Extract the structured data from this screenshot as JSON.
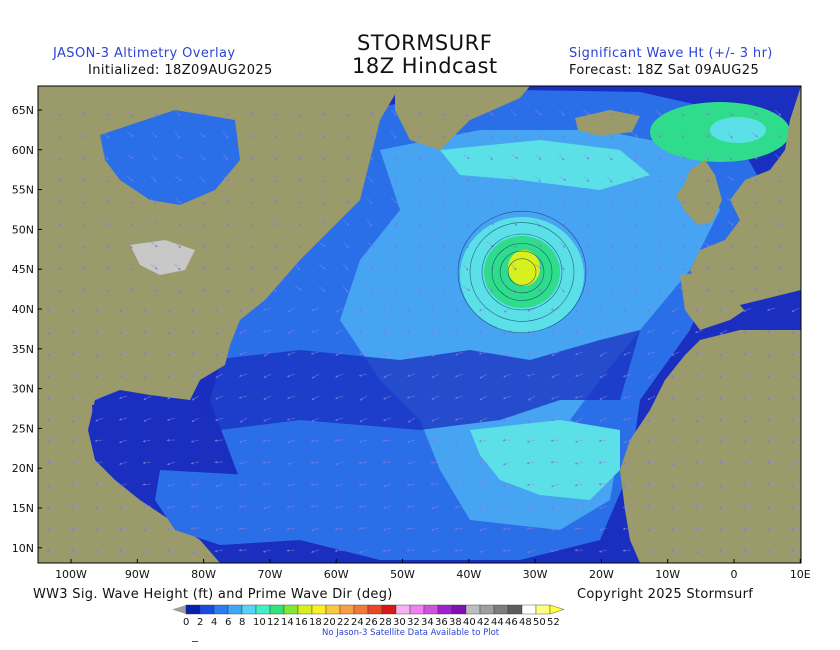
{
  "header": {
    "left_title": "JASON-3 Altimetry Overlay",
    "left_sub": "Initialized: 18Z09AUG2025",
    "center_title": "STORMSURF",
    "center_sub": "18Z Hindcast",
    "right_title": "Significant Wave Ht (+/- 3 hr)",
    "right_sub": "Forecast: 18Z Sat 09AUG25"
  },
  "axes": {
    "lat_labels": [
      "65N",
      "60N",
      "55N",
      "50N",
      "45N",
      "40N",
      "35N",
      "30N",
      "25N",
      "20N",
      "15N",
      "10N"
    ],
    "lon_labels": [
      "100W",
      "90W",
      "80W",
      "70W",
      "60W",
      "50W",
      "40W",
      "30W",
      "20W",
      "10W",
      "0",
      "10E"
    ]
  },
  "footer": {
    "left": "WW3 Sig. Wave Height (ft) and Prime Wave Dir (deg)",
    "right": "Copyright 2025 Stormsurf",
    "nodata": "No Jason-3 Satellite Data Available to Plot"
  },
  "legend": {
    "values": [
      "0",
      "2",
      "4",
      "6",
      "8",
      "10",
      "12",
      "14",
      "16",
      "18",
      "20",
      "22",
      "24",
      "26",
      "28",
      "30",
      "32",
      "34",
      "36",
      "38",
      "40",
      "42",
      "44",
      "46",
      "48",
      "50",
      "52"
    ],
    "colors": [
      "#0a1fb0",
      "#1a4be0",
      "#2a7cf0",
      "#3fa8f5",
      "#56d4f5",
      "#3ff0c8",
      "#33e27a",
      "#80e830",
      "#d8f020",
      "#f8f020",
      "#f8c840",
      "#f8a040",
      "#f07838",
      "#e84828",
      "#d81818",
      "#f7b0f0",
      "#f080f0",
      "#d050e0",
      "#a020d0",
      "#8010b0",
      "#bdbdbd",
      "#9e9e9e",
      "#7d7d7d",
      "#5d5d5d",
      "#ffffff",
      "#ffff80"
    ]
  },
  "colors": {
    "land": "#9b9a6b",
    "ocean_dark": "#1a2fc0",
    "ocean_mid": "#2a6ee8",
    "ocean_light": "#46a4f2",
    "swell_hi": "#5ce0e8",
    "storm": "#2fdc8c",
    "storm_core": "#d8f020"
  }
}
